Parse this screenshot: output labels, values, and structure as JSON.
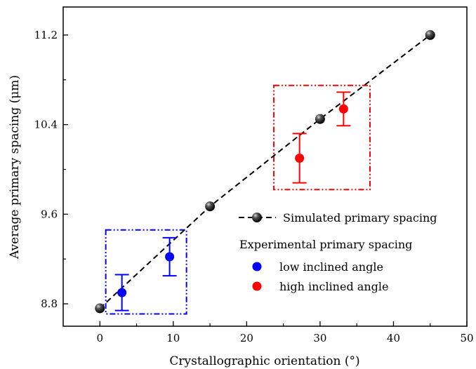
{
  "chart_data": {
    "type": "scatter",
    "xlabel": "Crystallographic orientation (°)",
    "ylabel": "Average primary spacing (μm)",
    "xlim": [
      -5,
      50
    ],
    "ylim": [
      8.6,
      11.45
    ],
    "x_ticks": [
      0,
      10,
      20,
      30,
      40,
      50
    ],
    "y_ticks": [
      8.8,
      9.6,
      10.4,
      11.2
    ],
    "x_tick_labels": [
      "0",
      "10",
      "20",
      "30",
      "40",
      "50"
    ],
    "y_tick_labels": [
      "8.8",
      "9.6",
      "10.4",
      "11.2"
    ],
    "grid": false,
    "legend_position": "right",
    "series": [
      {
        "name": "Simulated primary spacing",
        "style": "dashed-line-with-spheres",
        "color": "#000000",
        "x": [
          0,
          15,
          30,
          45
        ],
        "y": [
          8.76,
          9.67,
          10.45,
          11.2
        ]
      },
      {
        "name": "low inclined angle",
        "group": "Experimental primary spacing",
        "color": "#0000ff",
        "x": [
          3,
          9.5
        ],
        "y": [
          8.9,
          9.22
        ],
        "error": [
          0.16,
          0.17
        ]
      },
      {
        "name": "high inclined angle",
        "group": "Experimental primary spacing",
        "color": "#ff0000",
        "x": [
          27.2,
          33.2
        ],
        "y": [
          10.1,
          10.54
        ],
        "error": [
          0.22,
          0.15
        ]
      }
    ],
    "legend": {
      "line_entry": "Simulated primary spacing",
      "group_title": "Experimental primary spacing",
      "entries": [
        "low inclined angle",
        "high inclined angle"
      ]
    },
    "highlight_boxes": [
      {
        "color": "#0000ff",
        "x_range": [
          0.8,
          11.8
        ],
        "y_range": [
          8.71,
          9.46
        ]
      },
      {
        "color": "#ff0000",
        "x_range": [
          23.7,
          36.8
        ],
        "y_range": [
          9.82,
          10.75
        ]
      }
    ]
  }
}
